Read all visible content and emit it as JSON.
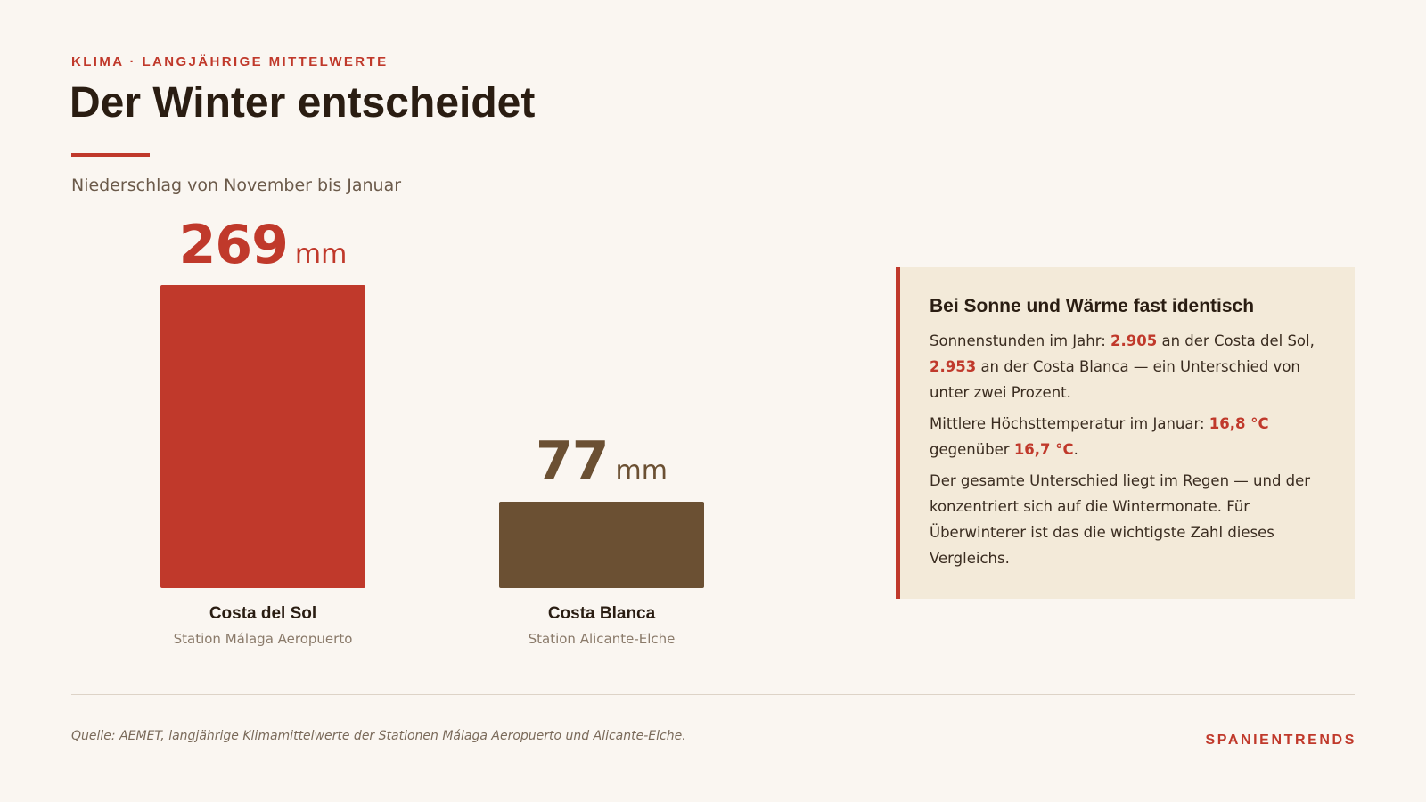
{
  "header": {
    "eyebrow": "KLIMA · LANGJÄHRIGE MITTELWERTE",
    "title": "Der Winter entscheidet",
    "subtitle": "Niederschlag von November bis Januar"
  },
  "chart_data": {
    "type": "bar",
    "title": "Der Winter entscheidet",
    "subtitle": "Niederschlag von November bis Januar",
    "unit": "mm",
    "categories": [
      "Costa del Sol",
      "Costa Blanca"
    ],
    "values": [
      269,
      77
    ],
    "stations": [
      "Station Málaga Aeropuerto",
      "Station Alicante-Elche"
    ],
    "colors": [
      "#c0392b",
      "#6b5033"
    ],
    "ylim": [
      0,
      269
    ],
    "grid": false
  },
  "info": {
    "title": "Bei Sonne und Wärme fast identisch",
    "p1_a": "Sonnenstunden im Jahr: ",
    "p1_b": "2.905",
    "p1_c": " an der Costa del Sol, ",
    "p1_d": "2.953",
    "p1_e": " an der Costa Blanca — ein Unterschied von unter zwei Prozent.",
    "p2_a": "Mittlere Höchsttemperatur im Januar: ",
    "p2_b": "16,8 °C",
    "p2_c": " gegenüber ",
    "p2_d": "16,7 °C",
    "p2_e": ".",
    "p3": "Der gesamte Unterschied liegt im Regen — und der konzentriert sich auf die Wintermonate. Für Überwinterer ist das die wichtigste Zahl dieses Vergleichs."
  },
  "footer": {
    "source": "Quelle: AEMET, langjährige Klimamittelwerte der Stationen Málaga Aeropuerto und Alicante-Elche.",
    "brand": "SPANIENTRENDS"
  },
  "colors": {
    "accent": "#c0392b",
    "secondary": "#6b5033",
    "background": "#faf6f1",
    "panel": "#f3ead9"
  }
}
